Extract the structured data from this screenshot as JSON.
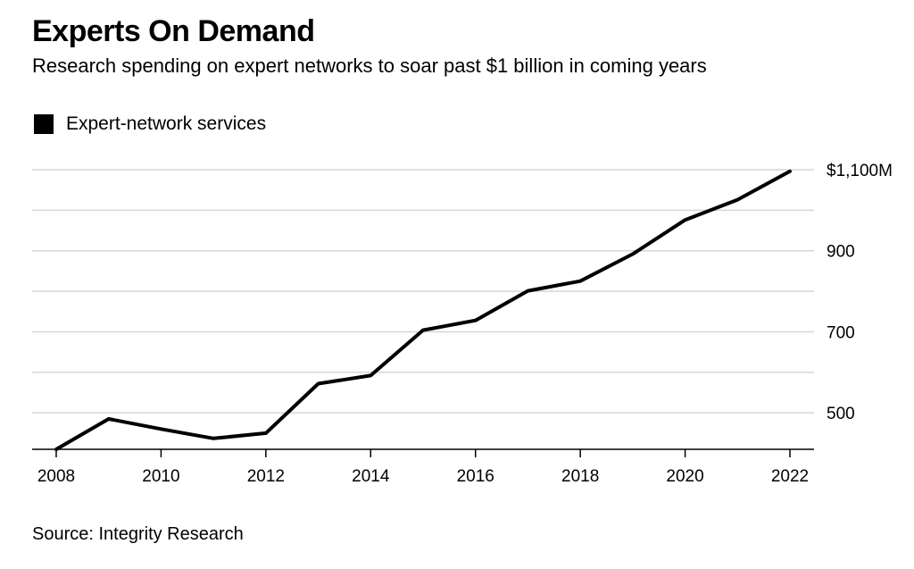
{
  "title": "Experts On Demand",
  "subtitle": "Research spending on expert networks to soar past $1 billion in coming years",
  "legend": {
    "label": "Expert-network services",
    "color": "#000000"
  },
  "source": "Source: Integrity Research",
  "chart_data": {
    "type": "line",
    "title": "Experts On Demand",
    "subtitle": "Research spending on expert networks to soar past $1 billion in coming years",
    "xlabel": "",
    "ylabel": "",
    "x": [
      2008,
      2009,
      2010,
      2011,
      2012,
      2013,
      2014,
      2015,
      2016,
      2017,
      2018,
      2019,
      2020,
      2021,
      2022
    ],
    "series": [
      {
        "name": "Expert-network services",
        "color": "#000000",
        "values": [
          410,
          485,
          460,
          437,
          450,
          572,
          592,
          704,
          728,
          801,
          825,
          892,
          976,
          1026,
          1096
        ]
      }
    ],
    "xlim": [
      2008,
      2022
    ],
    "ylim": [
      410,
      1100
    ],
    "x_ticks": [
      2008,
      2010,
      2012,
      2014,
      2016,
      2018,
      2020,
      2022
    ],
    "y_gridlines": [
      500,
      600,
      700,
      800,
      900,
      1000,
      1100
    ],
    "y_tick_labels": [
      {
        "value": 500,
        "label": "500"
      },
      {
        "value": 700,
        "label": "700"
      },
      {
        "value": 900,
        "label": "900"
      },
      {
        "value": 1100,
        "label": "$1,100M"
      }
    ],
    "grid": true,
    "legend_position": "top-left",
    "y_axis_side": "right"
  }
}
